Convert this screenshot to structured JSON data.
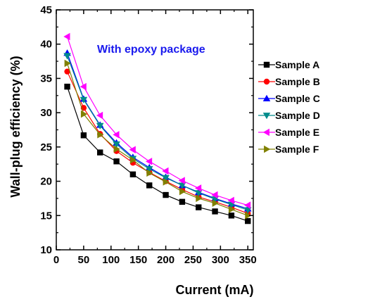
{
  "chart_data": {
    "type": "line",
    "title": "",
    "annotation": "With epoxy package",
    "annotation_color": "#1a1aee",
    "xlabel": "Current (mA)",
    "ylabel": "Wall-plug efficiency (%)",
    "xlim": [
      0,
      360
    ],
    "ylim": [
      10,
      45
    ],
    "xticks": [
      0,
      50,
      100,
      150,
      200,
      250,
      300,
      350
    ],
    "yticks": [
      10,
      15,
      20,
      25,
      30,
      35,
      40,
      45
    ],
    "grid": false,
    "legend_position": "right",
    "x": [
      20,
      50,
      80,
      110,
      140,
      170,
      200,
      230,
      260,
      290,
      320,
      350
    ],
    "series": [
      {
        "name": "Sample A",
        "color": "#000000",
        "marker": "square",
        "values": [
          33.8,
          26.7,
          24.2,
          22.9,
          21.0,
          19.4,
          18.0,
          17.0,
          16.2,
          15.6,
          15.0,
          14.2
        ]
      },
      {
        "name": "Sample B",
        "color": "#ff0000",
        "marker": "circle",
        "values": [
          36.0,
          30.7,
          26.9,
          24.4,
          22.7,
          21.3,
          20.0,
          18.8,
          17.7,
          17.0,
          16.2,
          15.3
        ]
      },
      {
        "name": "Sample C",
        "color": "#0000ff",
        "marker": "triangle-up",
        "values": [
          38.7,
          32.0,
          28.2,
          25.6,
          23.5,
          22.0,
          20.6,
          19.4,
          18.4,
          17.5,
          16.7,
          16.0
        ]
      },
      {
        "name": "Sample D",
        "color": "#008b8b",
        "marker": "triangle-down",
        "values": [
          38.3,
          31.9,
          28.1,
          25.4,
          23.3,
          21.8,
          20.5,
          19.4,
          18.3,
          17.4,
          16.6,
          15.8
        ]
      },
      {
        "name": "Sample E",
        "color": "#ff00ff",
        "marker": "triangle-left",
        "values": [
          41.1,
          33.8,
          29.6,
          26.8,
          24.6,
          22.9,
          21.5,
          20.1,
          19.0,
          18.0,
          17.2,
          16.5
        ]
      },
      {
        "name": "Sample F",
        "color": "#808000",
        "marker": "triangle-right",
        "values": [
          37.2,
          29.8,
          26.8,
          24.7,
          23.1,
          21.2,
          19.9,
          18.5,
          17.5,
          16.8,
          15.9,
          15.0
        ]
      }
    ]
  }
}
